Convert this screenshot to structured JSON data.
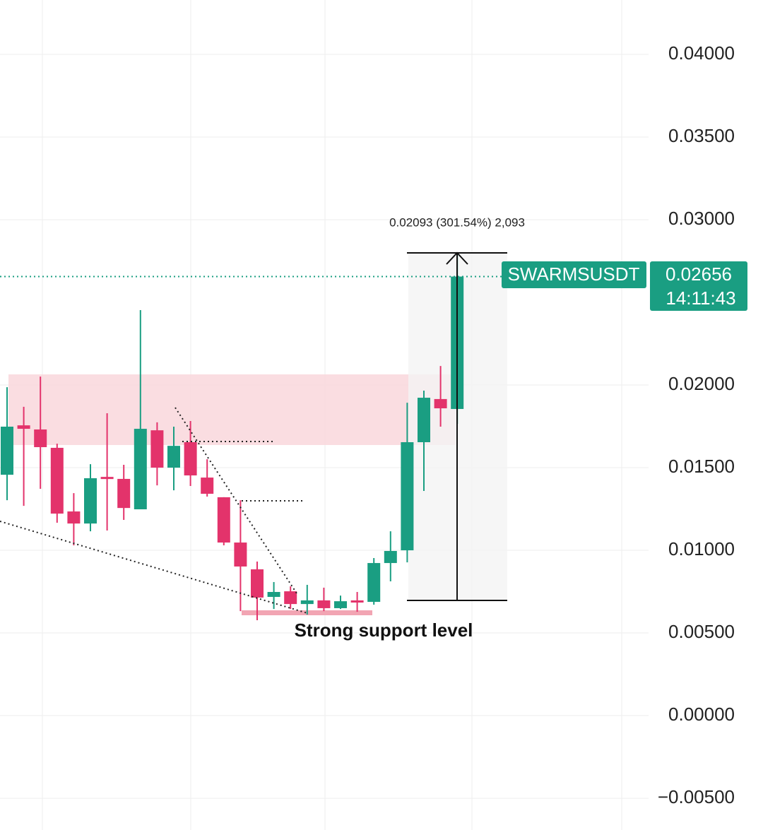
{
  "chart_data": {
    "type": "candlestick",
    "symbol": "SWARMSUSDT",
    "last_price": {
      "value": 0.02656,
      "label": "0.02656"
    },
    "countdown": "14:11:43",
    "measure_label": "0.02093 (301.54%) 2,093",
    "support_label": "Strong support level",
    "up_color": "#1a9e82",
    "down_color": "#e3336b",
    "ylim": [
      -0.00692,
      0.04329
    ],
    "yticks": [
      {
        "value": 0.04,
        "label": "0.04000"
      },
      {
        "value": 0.035,
        "label": "0.03500"
      },
      {
        "value": 0.03,
        "label": "0.03000"
      },
      {
        "value": 0.02,
        "label": "0.02000"
      },
      {
        "value": 0.015,
        "label": "0.01500"
      },
      {
        "value": 0.01,
        "label": "0.01000"
      },
      {
        "value": 0.005,
        "label": "0.00500"
      },
      {
        "value": 0,
        "label": "0.00000"
      },
      {
        "value": -0.005,
        "label": "−0.00500"
      }
    ],
    "grid": true,
    "open": [
      0.01457,
      0.01756,
      0.01731,
      0.0162,
      0.01235,
      0.01162,
      0.01444,
      0.01432,
      0.01248,
      0.01726,
      0.015,
      0.01654,
      0.0144,
      0.01321,
      0.01047,
      0.00885,
      0.00718,
      0.00752,
      0.00675,
      0.00697,
      0.0065,
      0.00697,
      0.00688,
      0.00923,
      0.01,
      0.01654,
      0.01915,
      0.01855
    ],
    "high": [
      0.01987,
      0.01868,
      0.02051,
      0.01645,
      0.01346,
      0.01521,
      0.01829,
      0.01517,
      0.02453,
      0.01774,
      0.01748,
      0.01782,
      0.01551,
      0.01321,
      0.01303,
      0.00932,
      0.00808,
      0.00782,
      0.00791,
      0.00774,
      0.00726,
      0.00748,
      0.00953,
      0.01115,
      0.01893,
      0.01966,
      0.02115,
      0.02791
    ],
    "low": [
      0.01303,
      0.01269,
      0.01372,
      0.01167,
      0.0103,
      0.01115,
      0.0112,
      0.01184,
      0.01248,
      0.01393,
      0.01363,
      0.01389,
      0.01325,
      0.0103,
      0.00632,
      0.00577,
      0.00645,
      0.00645,
      0.00611,
      0.00632,
      0.00645,
      0.00628,
      0.00671,
      0.00812,
      0.00927,
      0.01359,
      0.01748,
      0.01765
    ],
    "close": [
      0.01748,
      0.01735,
      0.01624,
      0.01222,
      0.01162,
      0.01436,
      0.01436,
      0.01256,
      0.01735,
      0.015,
      0.01632,
      0.01453,
      0.01342,
      0.01047,
      0.00902,
      0.00714,
      0.00748,
      0.00675,
      0.00697,
      0.0065,
      0.00692,
      0.00684,
      0.00923,
      0.00996,
      0.01654,
      0.01923,
      0.01859,
      0.02656
    ]
  }
}
